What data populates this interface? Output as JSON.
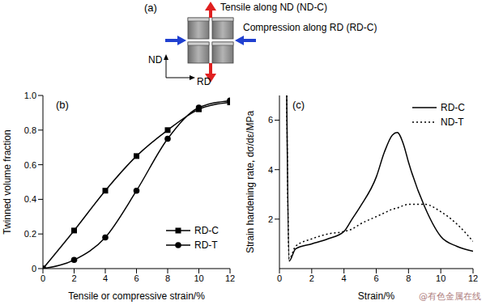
{
  "panel_a": {
    "label": "(a)",
    "tension": "Tensile along ND (ND-C)",
    "compression": "Compression along RD (RD-C)",
    "axis_vertical": "ND",
    "axis_horizontal": "RD"
  },
  "chart_data": [
    {
      "type": "line",
      "title": "(b)",
      "x_label": "Tensile or compressive strain/%",
      "y_label": "Twinned volume fraction",
      "x": [
        0,
        2,
        4,
        6,
        8,
        10,
        12
      ],
      "series": [
        {
          "name": "RD-C",
          "color": "#000000",
          "marker": "square",
          "line_style": "solid",
          "values": [
            0,
            0.22,
            0.45,
            0.65,
            0.8,
            0.92,
            0.96
          ]
        },
        {
          "name": "RD-T",
          "color": "#000000",
          "marker": "circle",
          "line_style": "solid",
          "values": [
            0,
            0.05,
            0.18,
            0.45,
            0.75,
            0.93,
            0.97
          ]
        }
      ],
      "xlim": [
        0,
        12
      ],
      "xticks": [
        0,
        2,
        4,
        6,
        8,
        10,
        12
      ],
      "ylim": [
        0,
        1
      ],
      "yticks": [
        0,
        0.2,
        0.4,
        0.6,
        0.8,
        {
          "value": 1,
          "label": "1.0"
        }
      ],
      "legend": "lower right",
      "grid": false
    },
    {
      "type": "line",
      "title": "(c)",
      "x_label": "Strain/%",
      "y_label": "Strain hardening rate, dσ/dε/MPa",
      "x": [
        0.45,
        0.6,
        1,
        2,
        3,
        4,
        4.5,
        5,
        6,
        6.5,
        7,
        7.3,
        7.7,
        8,
        9,
        10,
        11,
        12
      ],
      "series": [
        {
          "name": "RD-C",
          "color": "#000000",
          "marker": "none",
          "line_style": "solid",
          "values": [
            7,
            0.3,
            0.8,
            1.0,
            1.2,
            1.5,
            2.0,
            2.5,
            3.7,
            4.7,
            5.4,
            5.5,
            5.0,
            4.3,
            2.5,
            1.3,
            0.9,
            0.7
          ]
        },
        {
          "name": "ND-T",
          "color": "#000000",
          "marker": "none",
          "line_style": "dotted",
          "values": [
            7,
            0.4,
            0.9,
            1.2,
            1.4,
            1.5,
            1.6,
            1.8,
            2.1,
            2.25,
            2.4,
            2.45,
            2.55,
            2.6,
            2.6,
            2.3,
            1.8,
            1.1
          ]
        }
      ],
      "xlim": [
        0,
        12
      ],
      "xticks": [
        0,
        2,
        4,
        6,
        8,
        10,
        12
      ],
      "ylim": [
        0,
        7
      ],
      "yticks": [
        2,
        4,
        6
      ],
      "legend": "upper right",
      "grid": false
    }
  ],
  "watermark": "@有色金属在线"
}
